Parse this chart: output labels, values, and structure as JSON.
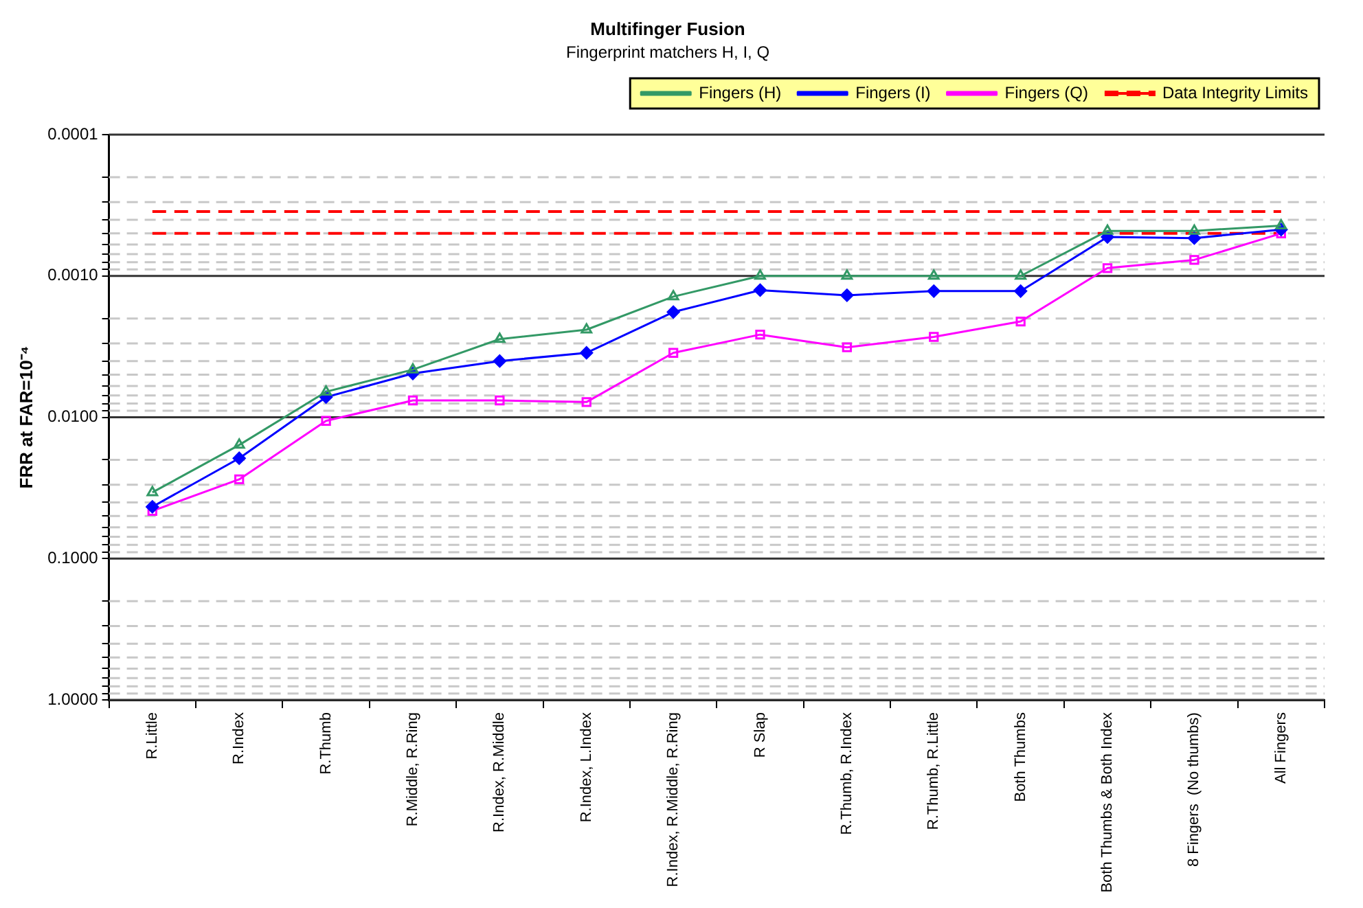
{
  "chart_data": {
    "type": "line",
    "title": "Multifinger Fusion",
    "subtitle": "Fingerprint matchers H, I, Q",
    "ylabel": "FRR at FAR=10⁻⁴",
    "categories": [
      "R.Little",
      "R.Index",
      "R.Thumb",
      "R.Middle, R.Ring",
      "R.Index, R.Middle",
      "R.Index, L.Index",
      "R.Index, R.Middle, R.Ring",
      "R Slap",
      "R.Thumb, R.Index",
      "R.Thumb, R.Little",
      "Both Thumbs",
      "Both Thumbs & Both Index",
      "8 Fingers  (No thumbs)",
      "All Fingers"
    ],
    "series": [
      {
        "name": "Fingers (H)",
        "color": "#339966",
        "marker": "triangle",
        "values": [
          0.034,
          0.0157,
          0.0066,
          0.0046,
          0.0028,
          0.0024,
          0.0014,
          0.001,
          0.001,
          0.001,
          0.001,
          0.00048,
          0.00048,
          0.00044
        ]
      },
      {
        "name": "Fingers (I)",
        "color": "#0000ff",
        "marker": "diamond",
        "values": [
          0.043,
          0.0195,
          0.0072,
          0.0049,
          0.004,
          0.0035,
          0.0018,
          0.00126,
          0.00137,
          0.00128,
          0.00128,
          0.00053,
          0.00054,
          0.00047
        ]
      },
      {
        "name": "Fingers (Q)",
        "color": "#ff00ff",
        "marker": "square",
        "values": [
          0.046,
          0.0275,
          0.0106,
          0.0076,
          0.0076,
          0.0078,
          0.0035,
          0.0026,
          0.0032,
          0.0027,
          0.0021,
          0.00088,
          0.00077,
          0.0005
        ]
      }
    ],
    "ref_lines": [
      {
        "axis": "y",
        "value": 0.00035,
        "label": "Data Integrity Limits",
        "color": "#ff0000",
        "line_style": "dashed"
      },
      {
        "axis": "y",
        "value": 0.0005,
        "color": "#ff0000",
        "line_style": "dashed"
      }
    ],
    "log": "y",
    "ylim": [
      1,
      0.0001
    ],
    "yticks": [
      {
        "value": 0.0001,
        "label": "0.0001"
      },
      {
        "value": 0.0002,
        "label": null
      },
      {
        "value": 0.0003,
        "label": null
      },
      {
        "value": 0.0004,
        "label": null
      },
      {
        "value": 0.0005,
        "label": null
      },
      {
        "value": 0.0006,
        "label": null
      },
      {
        "value": 0.0007,
        "label": null
      },
      {
        "value": 0.0008,
        "label": null
      },
      {
        "value": 0.0009,
        "label": null
      },
      {
        "value": 0.001,
        "label": "0.0010"
      },
      {
        "value": 0.002,
        "label": null
      },
      {
        "value": 0.003,
        "label": null
      },
      {
        "value": 0.004,
        "label": null
      },
      {
        "value": 0.005,
        "label": null
      },
      {
        "value": 0.006,
        "label": null
      },
      {
        "value": 0.007,
        "label": null
      },
      {
        "value": 0.008,
        "label": null
      },
      {
        "value": 0.009,
        "label": null
      },
      {
        "value": 0.01,
        "label": "0.0100"
      },
      {
        "value": 0.02,
        "label": null
      },
      {
        "value": 0.03,
        "label": null
      },
      {
        "value": 0.04,
        "label": null
      },
      {
        "value": 0.05,
        "label": null
      },
      {
        "value": 0.06,
        "label": null
      },
      {
        "value": 0.07,
        "label": null
      },
      {
        "value": 0.08,
        "label": null
      },
      {
        "value": 0.09,
        "label": null
      },
      {
        "value": 0.1,
        "label": "0.1000"
      },
      {
        "value": 0.2,
        "label": null
      },
      {
        "value": 0.3,
        "label": null
      },
      {
        "value": 0.4,
        "label": null
      },
      {
        "value": 0.5,
        "label": null
      },
      {
        "value": 0.6,
        "label": null
      },
      {
        "value": 0.7,
        "label": null
      },
      {
        "value": 0.8,
        "label": null
      },
      {
        "value": 0.9,
        "label": null
      },
      {
        "value": 1,
        "label": "1.0000"
      }
    ],
    "grid": "y",
    "legend": "top right",
    "line_style": "solid"
  }
}
